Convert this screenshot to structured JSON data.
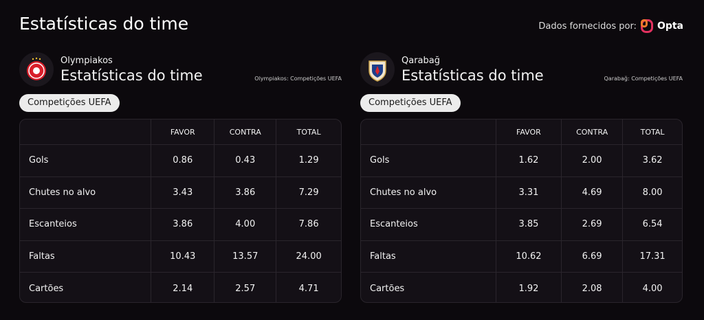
{
  "header": {
    "title": "Estatísticas do time",
    "provider_label": "Dados fornecidos por:",
    "provider": "Opta"
  },
  "panels": [
    {
      "team": "Olympiakos",
      "title": "Estatísticas do time",
      "source": "Olympiakos: Competições UEFA",
      "tag": "Competições UEFA",
      "table": {
        "columns": [
          "FAVOR",
          "CONTRA",
          "TOTAL"
        ],
        "rows": [
          [
            "Gols",
            "0.86",
            "0.43",
            "1.29"
          ],
          [
            "Chutes no alvo",
            "3.43",
            "3.86",
            "7.29"
          ],
          [
            "Escanteios",
            "3.86",
            "4.00",
            "7.86"
          ],
          [
            "Faltas",
            "10.43",
            "13.57",
            "24.00"
          ],
          [
            "Cartões",
            "2.14",
            "2.57",
            "4.71"
          ]
        ]
      }
    },
    {
      "team": "Qarabağ",
      "title": "Estatísticas do time",
      "source": "Qarabağ: Competições UEFA",
      "tag": "Competições UEFA",
      "table": {
        "columns": [
          "FAVOR",
          "CONTRA",
          "TOTAL"
        ],
        "rows": [
          [
            "Gols",
            "1.62",
            "2.00",
            "3.62"
          ],
          [
            "Chutes no alvo",
            "3.31",
            "4.69",
            "8.00"
          ],
          [
            "Escanteios",
            "3.85",
            "2.69",
            "6.54"
          ],
          [
            "Faltas",
            "10.62",
            "6.69",
            "17.31"
          ],
          [
            "Cartões",
            "1.92",
            "2.08",
            "4.00"
          ]
        ]
      }
    }
  ]
}
